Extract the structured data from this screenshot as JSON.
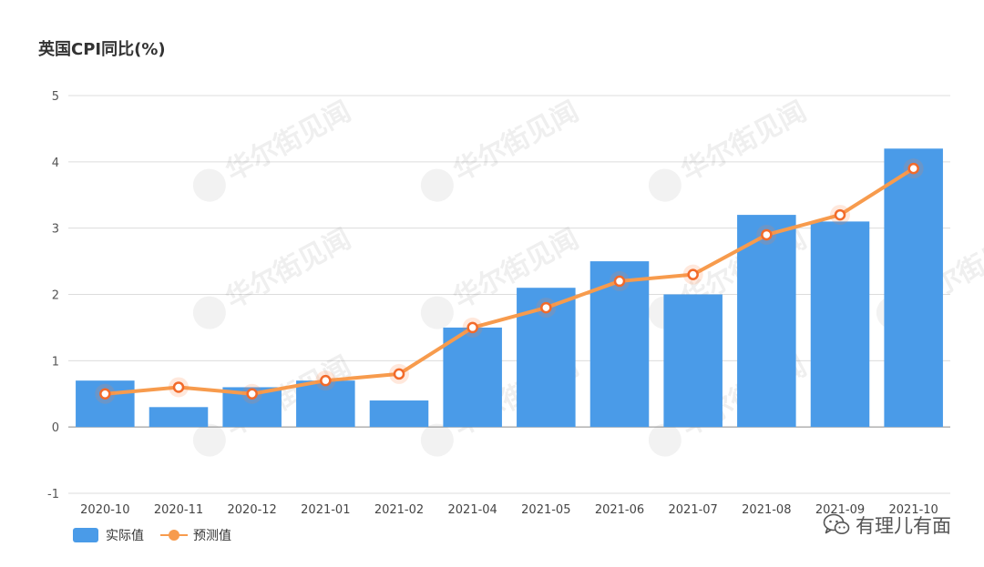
{
  "chart_data": {
    "type": "bar",
    "title": "英国CPI同比(%)",
    "categories": [
      "2020-10",
      "2020-11",
      "2020-12",
      "2021-01",
      "2021-02",
      "2021-04",
      "2021-05",
      "2021-06",
      "2021-07",
      "2021-08",
      "2021-09",
      "2021-10"
    ],
    "series": [
      {
        "name": "实际值",
        "type": "bar",
        "color": "#4A9BE8",
        "values": [
          0.7,
          0.3,
          0.6,
          0.7,
          0.4,
          1.5,
          2.1,
          2.5,
          2.0,
          3.2,
          3.1,
          4.2
        ]
      },
      {
        "name": "预测值",
        "type": "line",
        "color": "#F79B4D",
        "values": [
          0.5,
          0.6,
          0.5,
          0.7,
          0.8,
          1.5,
          1.8,
          2.2,
          2.3,
          2.9,
          3.2,
          3.9
        ]
      }
    ],
    "yticks": [
      -1,
      0,
      1,
      2,
      3,
      4,
      5
    ],
    "ylim": [
      -1,
      5
    ],
    "xlabel": "",
    "ylabel": "",
    "grid": true,
    "legend": "bottom-left"
  },
  "watermark": {
    "text": "有理儿有面",
    "icon": "wechat-icon"
  },
  "background_watermark_text": "华尔街见闻"
}
